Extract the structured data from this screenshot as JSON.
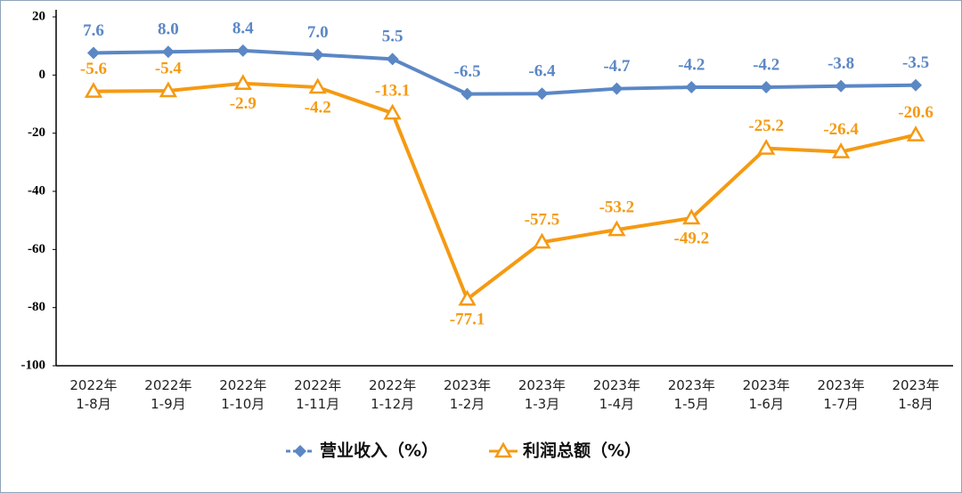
{
  "chart_data": {
    "type": "line",
    "categories": [
      "2022年\n1-8月",
      "2022年\n1-9月",
      "2022年\n1-10月",
      "2022年\n1-11月",
      "2022年\n1-12月",
      "2023年\n1-2月",
      "2023年\n1-3月",
      "2023年\n1-4月",
      "2023年\n1-5月",
      "2023年\n1-6月",
      "2023年\n1-7月",
      "2023年\n1-8月"
    ],
    "series": [
      {
        "name": "营业收入（%）",
        "color": "#5b87c5",
        "marker": "diamond",
        "values": [
          7.6,
          8.0,
          8.4,
          7.0,
          5.5,
          -6.5,
          -6.4,
          -4.7,
          -4.2,
          -4.2,
          -3.8,
          -3.5
        ],
        "value_labels": [
          "7.6",
          "8.0",
          "8.4",
          "7.0",
          "5.5",
          "-6.5",
          "-6.4",
          "-4.7",
          "-4.2",
          "-4.2",
          "-3.8",
          "-3.5"
        ]
      },
      {
        "name": "利润总额（%）",
        "color": "#f59a12",
        "marker": "triangle",
        "values": [
          -5.6,
          -5.4,
          -2.9,
          -4.2,
          -13.1,
          -77.1,
          -57.5,
          -53.2,
          -49.2,
          -25.2,
          -26.4,
          -20.6
        ],
        "value_labels": [
          "-5.6",
          "-5.4",
          "-2.9",
          "-4.2",
          "-13.1",
          "-77.1",
          "-57.5",
          "-53.2",
          "-49.2",
          "-25.2",
          "-26.4",
          "-20.6"
        ]
      }
    ],
    "ylim": [
      -100,
      20
    ],
    "yticks": [
      -100,
      -80,
      -60,
      -40,
      -20,
      0,
      20
    ],
    "grid": false,
    "legend": "bottom"
  }
}
